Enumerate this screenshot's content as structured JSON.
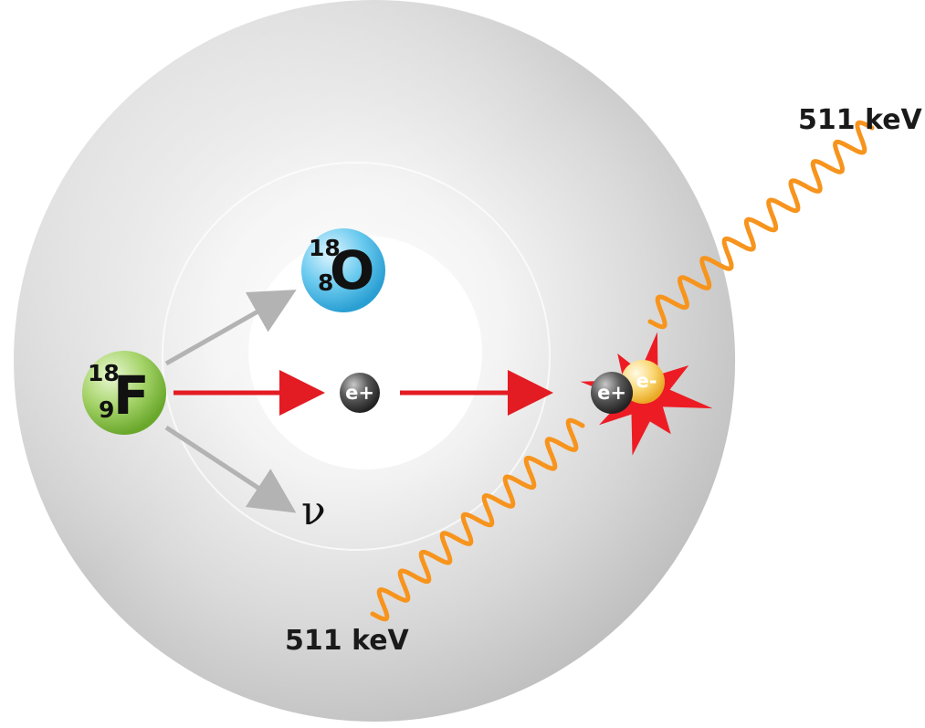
{
  "fluorine": {
    "mass": "18",
    "z": "9",
    "symbol": "F"
  },
  "oxygen": {
    "mass": "18",
    "z": "8",
    "symbol": "O"
  },
  "positron_label": "e+",
  "electron_label": "e-",
  "neutrino_label": "ν",
  "gamma_top_label": "511 keV",
  "gamma_bottom_label": "511 keV",
  "colors": {
    "fluorine": "#8cc63f",
    "oxygen": "#39b3e6",
    "positron": "#3a3a3a",
    "electron": "#f4c542",
    "emission_arrow": "#e31b23",
    "decay_arrow": "#b3b3b3",
    "photon_wave": "#f7941d",
    "annihilation_burst": "#ed1c24"
  }
}
